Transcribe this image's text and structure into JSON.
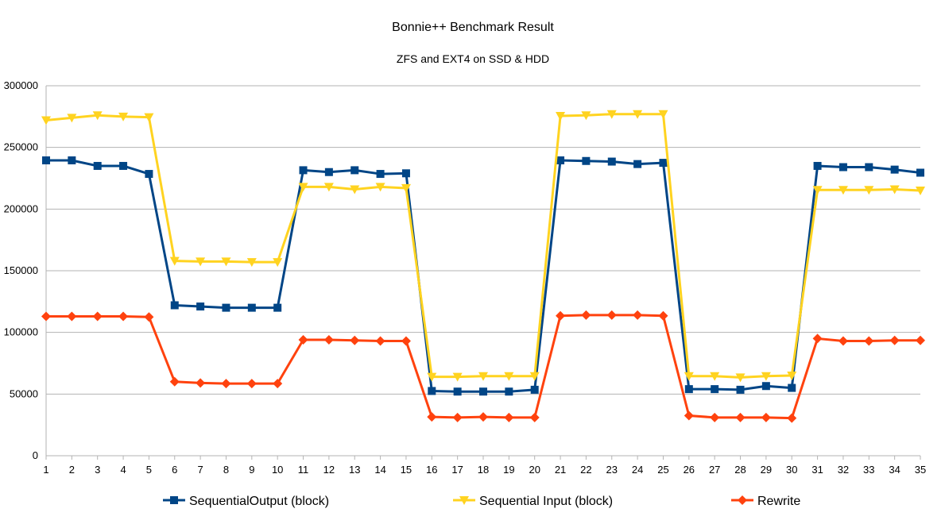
{
  "chart_data": {
    "type": "line",
    "title": "Bonnie++ Benchmark Result",
    "subtitle": "ZFS and EXT4 on SSD & HDD",
    "xlabel": "",
    "ylabel": "",
    "categories": [
      "1",
      "2",
      "3",
      "4",
      "5",
      "6",
      "7",
      "8",
      "9",
      "10",
      "11",
      "12",
      "13",
      "14",
      "15",
      "16",
      "17",
      "18",
      "19",
      "20",
      "21",
      "22",
      "23",
      "24",
      "25",
      "26",
      "27",
      "28",
      "29",
      "30",
      "31",
      "32",
      "33",
      "34",
      "35"
    ],
    "ylim": [
      0,
      300000
    ],
    "yticks": [
      0,
      50000,
      100000,
      150000,
      200000,
      250000,
      300000
    ],
    "grid": true,
    "legend_position": "bottom",
    "series": [
      {
        "name": "SequentialOutput (block)",
        "color": "#004586",
        "marker": "square",
        "values": [
          239500,
          239500,
          235000,
          235000,
          228500,
          122000,
          121000,
          120000,
          120000,
          120000,
          231500,
          230000,
          231500,
          228500,
          229000,
          52500,
          52000,
          52000,
          52000,
          53500,
          239500,
          239000,
          238500,
          236500,
          237500,
          54000,
          54000,
          53500,
          56500,
          55000,
          235000,
          234000,
          234000,
          232000,
          229500
        ]
      },
      {
        "name": "Sequential Input (block)",
        "color": "#ffd320",
        "marker": "triangle-down",
        "values": [
          272000,
          274000,
          276000,
          275000,
          274500,
          158000,
          157500,
          157500,
          157000,
          157000,
          218000,
          218000,
          216000,
          218000,
          217000,
          64000,
          64000,
          64500,
          64500,
          64500,
          275500,
          276000,
          277000,
          277000,
          277000,
          64500,
          64500,
          63500,
          64500,
          65000,
          215500,
          215500,
          215500,
          216000,
          215000
        ]
      },
      {
        "name": "Rewrite",
        "color": "#ff420e",
        "marker": "diamond",
        "values": [
          113000,
          113000,
          113000,
          113000,
          112500,
          60000,
          59000,
          58500,
          58500,
          58500,
          94000,
          94000,
          93500,
          93000,
          93000,
          31500,
          31000,
          31500,
          31000,
          31000,
          113500,
          114000,
          114000,
          114000,
          113500,
          32500,
          31000,
          31000,
          31000,
          30500,
          95000,
          93000,
          93000,
          93500,
          93500
        ]
      }
    ]
  }
}
